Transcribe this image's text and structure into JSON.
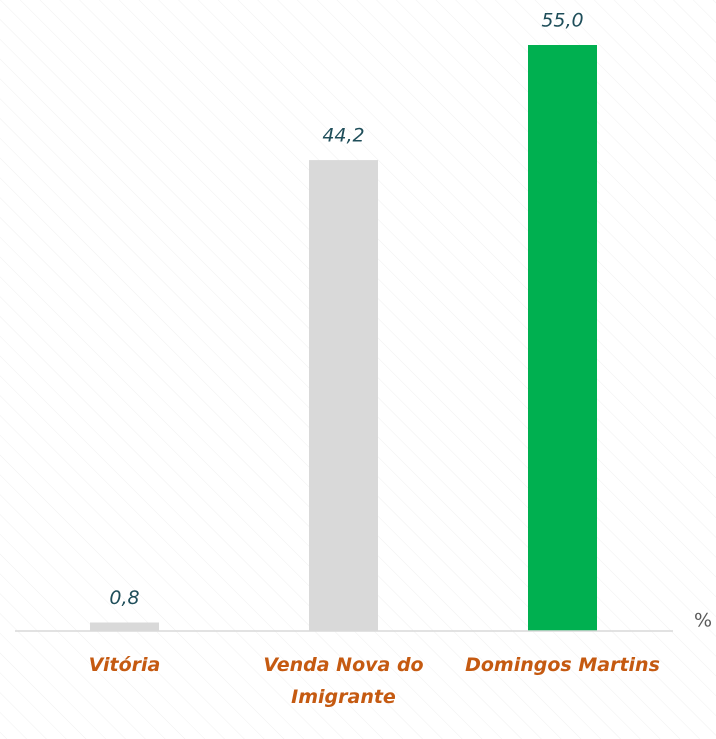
{
  "chart_data": {
    "type": "bar",
    "ylabel": "%",
    "categories": [
      "Vitória",
      "Venda Nova do Imigrante",
      "Domingos Martins"
    ],
    "values": [
      0.8,
      44.2,
      55.0
    ],
    "value_labels": [
      "0,8",
      "44,2",
      "55,0"
    ],
    "colors": [
      "#d9d9d9",
      "#d9d9d9",
      "#00b050"
    ],
    "ylim": [
      0,
      55
    ]
  }
}
